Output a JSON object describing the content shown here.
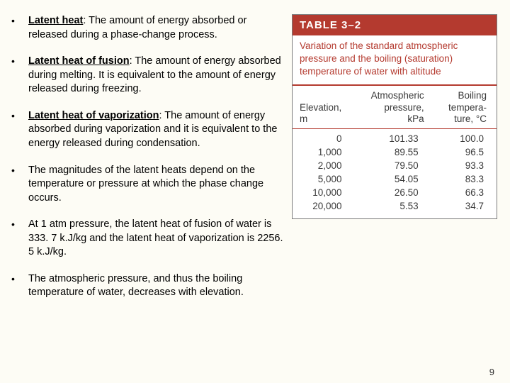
{
  "bullets": [
    {
      "term": "Latent heat",
      "sep": ": ",
      "rest": "The amount of energy absorbed or released during a phase-change process."
    },
    {
      "term": "Latent heat of fusion",
      "sep": ": ",
      "rest": "The amount of energy absorbed during melting. It is equivalent to the amount of energy released during freezing."
    },
    {
      "term": "Latent heat of vaporization",
      "sep": ": ",
      "rest": "The amount of energy absorbed during vaporization and it is equivalent to the energy released during condensation."
    },
    {
      "term": "",
      "sep": "",
      "rest": "The magnitudes of the latent heats depend on the temperature or pressure at which the phase change occurs."
    },
    {
      "term": "",
      "sep": "",
      "rest": "At 1 atm pressure, the latent heat of fusion of water is 333. 7 k.J/kg and the latent heat of vaporization is 2256. 5 k.J/kg."
    },
    {
      "term": "",
      "sep": "",
      "rest": "The atmospheric pressure, and thus the boiling temperature of water, decreases with elevation."
    }
  ],
  "table": {
    "label": "TABLE 3–2",
    "caption": "Variation of the standard atmospheric pressure and the boiling (saturation) temperature of water with altitude",
    "headers": {
      "c0a": "Elevation,",
      "c0b": "m",
      "c1a": "Atmospheric",
      "c1b": "pressure,",
      "c1c": "kPa",
      "c2a": "Boiling",
      "c2b": "tempera-",
      "c2c": "ture, °C"
    },
    "rows": [
      {
        "elev": "0",
        "p": "101.33",
        "t": "100.0"
      },
      {
        "elev": "1,000",
        "p": "89.55",
        "t": "96.5"
      },
      {
        "elev": "2,000",
        "p": "79.50",
        "t": "93.3"
      },
      {
        "elev": "5,000",
        "p": "54.05",
        "t": "83.3"
      },
      {
        "elev": "10,000",
        "p": "26.50",
        "t": "66.3"
      },
      {
        "elev": "20,000",
        "p": "5.53",
        "t": "34.7"
      }
    ],
    "colors": {
      "header_bg": "#b43a2f",
      "header_text": "#ffffff",
      "caption_text": "#b43a2f",
      "rule": "#b43a2f",
      "body_text": "#3a3a3a",
      "box_border": "#7a7a7a",
      "page_bg": "#fdfcf5"
    },
    "fontsize": {
      "header": 15,
      "caption": 13.5,
      "body": 13.5
    }
  },
  "page_number": "9"
}
